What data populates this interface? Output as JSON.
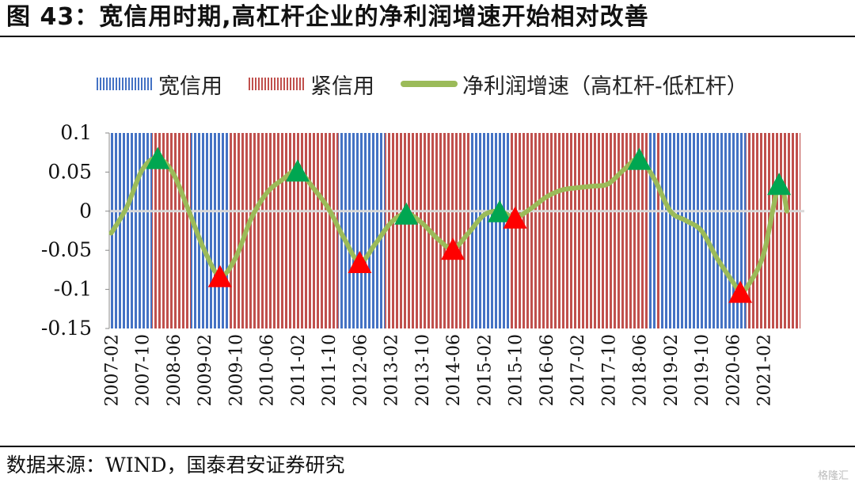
{
  "title": "图 43：宽信用时期,高杠杆企业的净利润增速开始相对改善",
  "source": "数据来源：WIND，国泰君安证券研究",
  "watermark": "格隆汇",
  "chart_data": {
    "type": "line",
    "legend": [
      {
        "label": "宽信用",
        "kind": "bar",
        "color": "#4472C4"
      },
      {
        "label": "紧信用",
        "kind": "bar",
        "color": "#C0504D"
      },
      {
        "label": "净利润增速（高杠杆-低杠杆）",
        "kind": "line",
        "color": "#9BBB59"
      }
    ],
    "ylim": [
      -0.15,
      0.1
    ],
    "yticks": [
      0.1,
      0.05,
      0,
      -0.05,
      -0.1,
      -0.15
    ],
    "ytick_labels": [
      "0.1",
      "0.05",
      "0",
      "-0.05",
      "-0.1",
      "-0.15"
    ],
    "xlim": [
      "2007-02",
      "2021-12"
    ],
    "xticks": [
      "2007-02",
      "2007-10",
      "2008-06",
      "2009-02",
      "2009-10",
      "2010-06",
      "2011-02",
      "2011-10",
      "2012-06",
      "2013-02",
      "2013-10",
      "2014-06",
      "2015-02",
      "2015-10",
      "2016-06",
      "2017-02",
      "2017-10",
      "2018-06",
      "2019-02",
      "2019-10",
      "2020-06",
      "2021-02"
    ],
    "credit_periods": [
      {
        "start": "2007-02",
        "end": "2008-01",
        "regime": "宽信用"
      },
      {
        "start": "2008-01",
        "end": "2008-11",
        "regime": "紧信用"
      },
      {
        "start": "2008-11",
        "end": "2009-09",
        "regime": "宽信用"
      },
      {
        "start": "2009-09",
        "end": "2012-01",
        "regime": "紧信用"
      },
      {
        "start": "2012-01",
        "end": "2013-01",
        "regime": "宽信用"
      },
      {
        "start": "2013-01",
        "end": "2014-11",
        "regime": "紧信用"
      },
      {
        "start": "2014-11",
        "end": "2015-09",
        "regime": "宽信用"
      },
      {
        "start": "2015-09",
        "end": "2018-09",
        "regime": "紧信用"
      },
      {
        "start": "2018-09",
        "end": "2018-11",
        "regime": "宽信用"
      },
      {
        "start": "2018-11",
        "end": "2018-12",
        "regime": "紧信用"
      },
      {
        "start": "2018-12",
        "end": "2020-10",
        "regime": "宽信用"
      },
      {
        "start": "2020-10",
        "end": "2021-12",
        "regime": "紧信用"
      }
    ],
    "series": [
      {
        "name": "净利润增速（高杠杆-低杠杆）",
        "points": [
          {
            "x": "2007-02",
            "y": -0.028
          },
          {
            "x": "2007-06",
            "y": 0.005
          },
          {
            "x": "2007-10",
            "y": 0.053
          },
          {
            "x": "2008-02",
            "y": 0.068
          },
          {
            "x": "2008-06",
            "y": 0.048
          },
          {
            "x": "2008-10",
            "y": 0.0
          },
          {
            "x": "2009-02",
            "y": -0.05
          },
          {
            "x": "2009-06",
            "y": -0.083
          },
          {
            "x": "2009-10",
            "y": -0.06
          },
          {
            "x": "2010-02",
            "y": -0.01
          },
          {
            "x": "2010-06",
            "y": 0.023
          },
          {
            "x": "2010-10",
            "y": 0.04
          },
          {
            "x": "2011-02",
            "y": 0.052
          },
          {
            "x": "2011-06",
            "y": 0.03
          },
          {
            "x": "2011-10",
            "y": 0.003
          },
          {
            "x": "2012-02",
            "y": -0.035
          },
          {
            "x": "2012-06",
            "y": -0.065
          },
          {
            "x": "2012-10",
            "y": -0.042
          },
          {
            "x": "2013-02",
            "y": -0.015
          },
          {
            "x": "2013-06",
            "y": -0.003
          },
          {
            "x": "2013-10",
            "y": -0.015
          },
          {
            "x": "2014-02",
            "y": -0.035
          },
          {
            "x": "2014-06",
            "y": -0.048
          },
          {
            "x": "2014-10",
            "y": -0.028
          },
          {
            "x": "2015-02",
            "y": -0.005
          },
          {
            "x": "2015-06",
            "y": 0.0
          },
          {
            "x": "2015-10",
            "y": -0.008
          },
          {
            "x": "2016-02",
            "y": 0.003
          },
          {
            "x": "2016-06",
            "y": 0.018
          },
          {
            "x": "2016-10",
            "y": 0.027
          },
          {
            "x": "2017-02",
            "y": 0.03
          },
          {
            "x": "2017-06",
            "y": 0.032
          },
          {
            "x": "2017-10",
            "y": 0.035
          },
          {
            "x": "2018-02",
            "y": 0.053
          },
          {
            "x": "2018-06",
            "y": 0.067
          },
          {
            "x": "2018-10",
            "y": 0.04
          },
          {
            "x": "2019-02",
            "y": 0.0
          },
          {
            "x": "2019-06",
            "y": -0.012
          },
          {
            "x": "2019-10",
            "y": -0.025
          },
          {
            "x": "2020-02",
            "y": -0.06
          },
          {
            "x": "2020-06",
            "y": -0.09
          },
          {
            "x": "2020-08",
            "y": -0.103
          },
          {
            "x": "2020-10",
            "y": -0.095
          },
          {
            "x": "2021-02",
            "y": -0.055
          },
          {
            "x": "2021-06",
            "y": 0.035
          },
          {
            "x": "2021-08",
            "y": 0.0
          }
        ]
      }
    ],
    "markers": [
      {
        "x": "2008-02",
        "y": 0.068,
        "type": "peak",
        "color": "#00A651"
      },
      {
        "x": "2009-06",
        "y": -0.083,
        "type": "trough",
        "color": "#FF0000"
      },
      {
        "x": "2011-02",
        "y": 0.052,
        "type": "peak",
        "color": "#00A651"
      },
      {
        "x": "2012-06",
        "y": -0.065,
        "type": "trough",
        "color": "#FF0000"
      },
      {
        "x": "2013-06",
        "y": -0.003,
        "type": "peak",
        "color": "#00A651"
      },
      {
        "x": "2014-06",
        "y": -0.048,
        "type": "trough",
        "color": "#FF0000"
      },
      {
        "x": "2015-06",
        "y": 0.0,
        "type": "peak",
        "color": "#00A651"
      },
      {
        "x": "2015-10",
        "y": -0.008,
        "type": "trough",
        "color": "#FF0000"
      },
      {
        "x": "2018-06",
        "y": 0.067,
        "type": "peak",
        "color": "#00A651"
      },
      {
        "x": "2020-08",
        "y": -0.103,
        "type": "trough",
        "color": "#FF0000"
      },
      {
        "x": "2021-06",
        "y": 0.035,
        "type": "peak",
        "color": "#00A651"
      }
    ],
    "grid": false,
    "legend_position": "top"
  }
}
